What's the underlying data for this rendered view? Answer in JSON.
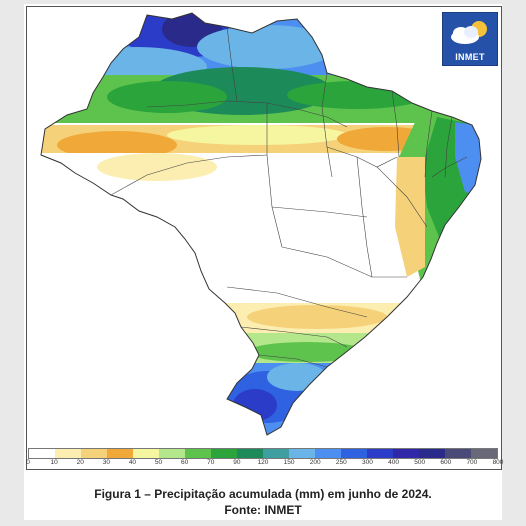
{
  "figure": {
    "caption_line1": "Figura 1 – Precipitação acumulada (mm) em junho de 2024.",
    "caption_line2": "Fonte: INMET"
  },
  "logo": {
    "text": "INMET",
    "icon": "cloud-sun-icon"
  },
  "legend": {
    "units": "mm",
    "ticks": [
      "0",
      "10",
      "20",
      "30",
      "40",
      "50",
      "60",
      "70",
      "90",
      "120",
      "150",
      "200",
      "250",
      "300",
      "400",
      "500",
      "600",
      "700",
      "800"
    ],
    "colors": [
      "#ffffff",
      "#fbeeb0",
      "#f5d27a",
      "#f0a838",
      "#f6f6a0",
      "#b4e68c",
      "#5ec34d",
      "#2ba43c",
      "#1c8a59",
      "#3f9fa0",
      "#6ab4e8",
      "#4d8ff0",
      "#2f62e0",
      "#2a3cc8",
      "#3028a8",
      "#2a2a8a",
      "#4a4a78",
      "#686878"
    ]
  },
  "colors": {
    "panel_border": "#555555",
    "state_lines": "#444444",
    "background": "#e9e9e9"
  }
}
